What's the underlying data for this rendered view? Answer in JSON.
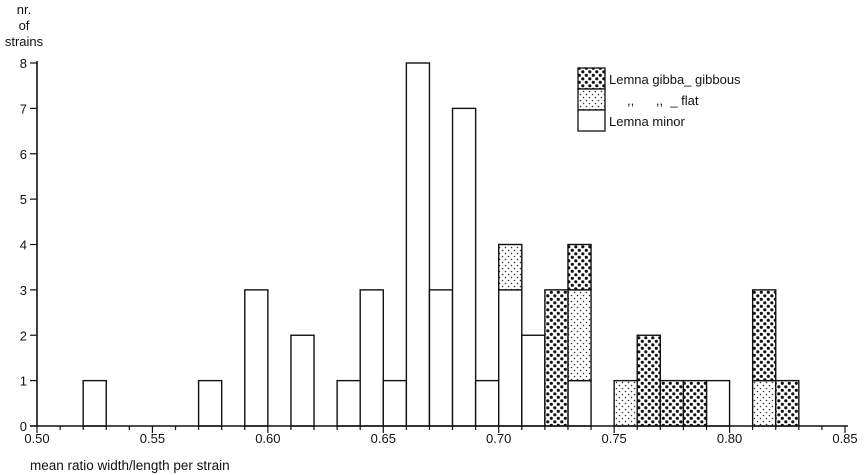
{
  "chart_data": {
    "type": "bar",
    "ylabel_lines": [
      "nr.",
      "of",
      "strains"
    ],
    "xlabel": "mean ratio width/length per strain",
    "xlim": [
      0.5,
      0.85
    ],
    "ylim": [
      0,
      8
    ],
    "bin_width": 0.01,
    "x_ticks": [
      "0.50",
      "0.55",
      "0.60",
      "0.65",
      "0.70",
      "0.75",
      "0.80",
      "0.85"
    ],
    "y_ticks": [
      "0",
      "1",
      "2",
      "3",
      "4",
      "5",
      "6",
      "7",
      "8"
    ],
    "legend": [
      {
        "key": "gibbous",
        "label": "Lemna gibba_ gibbous",
        "pattern": "dense-dots"
      },
      {
        "key": "flat",
        "label": ",,      ,,  _ flat",
        "pattern": "light-dots"
      },
      {
        "key": "minor",
        "label": "Lemna minor",
        "pattern": "empty"
      }
    ],
    "legend_position": "top-right",
    "series": [
      {
        "key": "minor",
        "bins": [
          {
            "x": 0.525,
            "count": 1
          },
          {
            "x": 0.575,
            "count": 1
          },
          {
            "x": 0.595,
            "count": 3
          },
          {
            "x": 0.615,
            "count": 2
          },
          {
            "x": 0.635,
            "count": 1
          },
          {
            "x": 0.645,
            "count": 3
          },
          {
            "x": 0.655,
            "count": 1
          },
          {
            "x": 0.665,
            "count": 8
          },
          {
            "x": 0.675,
            "count": 3
          },
          {
            "x": 0.685,
            "count": 7
          },
          {
            "x": 0.695,
            "count": 1
          },
          {
            "x": 0.705,
            "count": 3
          },
          {
            "x": 0.715,
            "count": 2
          },
          {
            "x": 0.735,
            "count": 1
          },
          {
            "x": 0.795,
            "count": 1
          }
        ]
      },
      {
        "key": "flat",
        "bins": [
          {
            "x": 0.705,
            "count": 1
          },
          {
            "x": 0.735,
            "count": 2
          },
          {
            "x": 0.755,
            "count": 1
          },
          {
            "x": 0.815,
            "count": 1
          }
        ]
      },
      {
        "key": "gibbous",
        "bins": [
          {
            "x": 0.725,
            "count": 3
          },
          {
            "x": 0.735,
            "count": 1
          },
          {
            "x": 0.765,
            "count": 2
          },
          {
            "x": 0.775,
            "count": 1
          },
          {
            "x": 0.785,
            "count": 1
          },
          {
            "x": 0.815,
            "count": 2
          },
          {
            "x": 0.825,
            "count": 1
          }
        ]
      }
    ]
  }
}
